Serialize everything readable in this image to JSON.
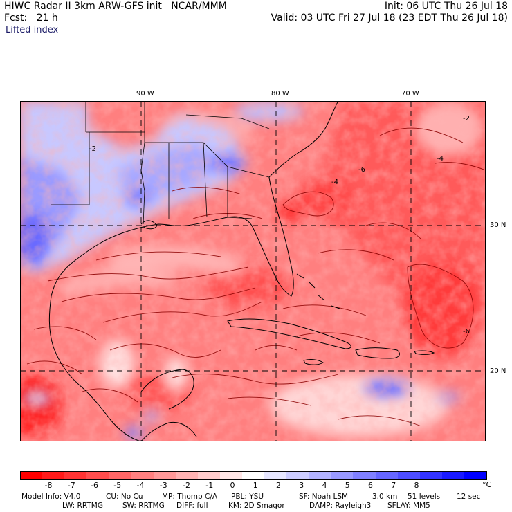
{
  "header": {
    "title": "HIWC Radar II 3km ARW-GFS init   NCAR/MMM",
    "init": "Init: 06 UTC Thu 26 Jul 18",
    "fcst": "Fcst:   21 h",
    "valid": "Valid: 03 UTC Fri 27 Jul 18 (23 EDT Thu 26 Jul 18)",
    "field": "Lifted index"
  },
  "map": {
    "lon_labels": [
      "90 W",
      "80 W",
      "70 W"
    ],
    "lat_labels": [
      "30 N",
      "20 N"
    ],
    "contour_labels": [
      "-2",
      "-4",
      "-2",
      "-6",
      "-4",
      "-6"
    ]
  },
  "colorbar": {
    "ticks": [
      "-8",
      "-7",
      "-6",
      "-5",
      "-4",
      "-3",
      "-2",
      "-1",
      "0",
      "1",
      "2",
      "3",
      "4",
      "5",
      "6",
      "7",
      "8"
    ],
    "unit": "°C",
    "colors": [
      "#ff0000",
      "#ff1a1a",
      "#ff3333",
      "#ff4d4d",
      "#ff6666",
      "#ff8080",
      "#ff9999",
      "#ffb3b3",
      "#ffcccc",
      "#ffe6e6",
      "#ffffff",
      "#e6e6ff",
      "#ccccff",
      "#b3b3ff",
      "#9999ff",
      "#8080ff",
      "#6666ff",
      "#4d4dff",
      "#3333ff",
      "#1a1aff",
      "#0000ff"
    ]
  },
  "footer": {
    "line1": {
      "model": "Model Info: V4.0",
      "cu": "CU: No Cu",
      "mp": "MP: Thomp C/A",
      "pbl": "PBL: YSU",
      "sf": "SF: Noah LSM",
      "res": "3.0 km",
      "levels": "51 levels",
      "dt": "12 sec"
    },
    "line2": {
      "lw": "LW: RRTMG",
      "sw": "SW: RRTMG",
      "diff": "DIFF: full",
      "km": "KM: 2D Smagor",
      "damp": "DAMP: Rayleigh3",
      "sflay": "SFLAY: MM5"
    }
  }
}
